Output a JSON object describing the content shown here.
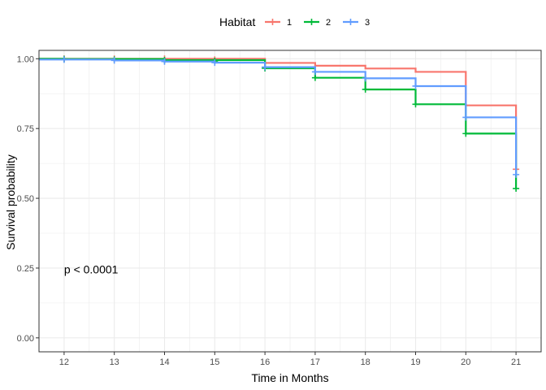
{
  "chart_data": {
    "type": "line",
    "step": true,
    "title": "",
    "xlabel": "Time in Months",
    "ylabel": "Survival probability",
    "xlim": [
      11.5,
      21.5
    ],
    "ylim": [
      -0.05,
      1.03
    ],
    "x_ticks": [
      12,
      13,
      14,
      15,
      16,
      17,
      18,
      19,
      20,
      21
    ],
    "x_tick_labels": [
      "12",
      "13",
      "14",
      "15",
      "16",
      "17",
      "18",
      "19",
      "20",
      "21"
    ],
    "y_ticks": [
      0,
      0.25,
      0.5,
      0.75,
      1
    ],
    "y_tick_labels": [
      "0.00",
      "0.25",
      "0.50",
      "0.75",
      "1.00"
    ],
    "grid": true,
    "legend": {
      "title": "Habitat",
      "position": "top"
    },
    "annotation": "p < 0.0001",
    "annotation_at": [
      12,
      0.245
    ],
    "series": [
      {
        "name": "1",
        "color": "#F8766D",
        "steps": [
          {
            "x": 11.5,
            "y": 1.0
          },
          {
            "x": 16,
            "y": 0.985
          },
          {
            "x": 17,
            "y": 0.975
          },
          {
            "x": 18,
            "y": 0.965
          },
          {
            "x": 19,
            "y": 0.953
          },
          {
            "x": 20,
            "y": 0.833
          },
          {
            "x": 21,
            "y": 0.604
          }
        ],
        "censor": [
          {
            "x": 12,
            "y": 1.0
          },
          {
            "x": 13,
            "y": 1.0
          },
          {
            "x": 14,
            "y": 1.0
          },
          {
            "x": 15,
            "y": 0.997
          },
          {
            "x": 21,
            "y": 0.604
          }
        ]
      },
      {
        "name": "2",
        "color": "#00BA38",
        "steps": [
          {
            "x": 11.5,
            "y": 1.0
          },
          {
            "x": 12,
            "y": 0.999
          },
          {
            "x": 14,
            "y": 0.995
          },
          {
            "x": 16,
            "y": 0.966
          },
          {
            "x": 17,
            "y": 0.932
          },
          {
            "x": 18,
            "y": 0.89
          },
          {
            "x": 19,
            "y": 0.837
          },
          {
            "x": 20,
            "y": 0.732
          },
          {
            "x": 21,
            "y": 0.535
          }
        ],
        "censor": [
          {
            "x": 12,
            "y": 0.999
          },
          {
            "x": 13,
            "y": 0.997
          },
          {
            "x": 14,
            "y": 0.995
          },
          {
            "x": 15,
            "y": 0.992
          },
          {
            "x": 16,
            "y": 0.966
          },
          {
            "x": 17,
            "y": 0.932
          },
          {
            "x": 18,
            "y": 0.89
          },
          {
            "x": 19,
            "y": 0.837
          },
          {
            "x": 20,
            "y": 0.732
          },
          {
            "x": 21,
            "y": 0.535
          }
        ]
      },
      {
        "name": "3",
        "color": "#619CFF",
        "steps": [
          {
            "x": 11.5,
            "y": 0.997
          },
          {
            "x": 13,
            "y": 0.994
          },
          {
            "x": 14,
            "y": 0.99
          },
          {
            "x": 15,
            "y": 0.986
          },
          {
            "x": 16,
            "y": 0.97
          },
          {
            "x": 17,
            "y": 0.953
          },
          {
            "x": 18,
            "y": 0.93
          },
          {
            "x": 19,
            "y": 0.902
          },
          {
            "x": 20,
            "y": 0.79
          },
          {
            "x": 21,
            "y": 0.585
          }
        ],
        "censor": [
          {
            "x": 12,
            "y": 0.997
          },
          {
            "x": 13,
            "y": 0.994
          },
          {
            "x": 14,
            "y": 0.99
          },
          {
            "x": 15,
            "y": 0.986
          },
          {
            "x": 16,
            "y": 0.97
          },
          {
            "x": 17,
            "y": 0.953
          },
          {
            "x": 18,
            "y": 0.93
          },
          {
            "x": 19,
            "y": 0.902
          },
          {
            "x": 20,
            "y": 0.79
          },
          {
            "x": 21,
            "y": 0.585
          }
        ]
      }
    ]
  }
}
